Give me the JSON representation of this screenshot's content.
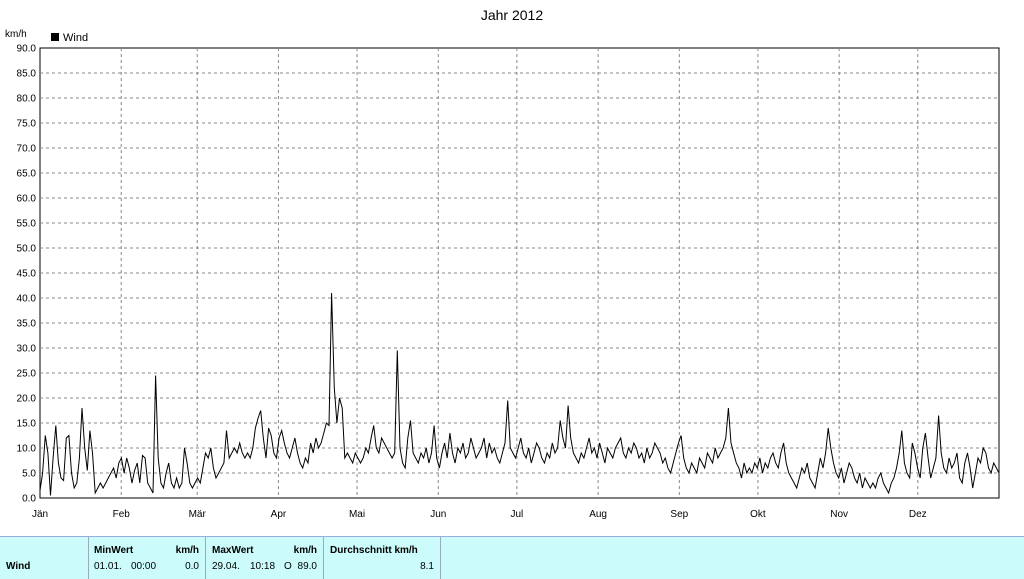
{
  "chart_data": {
    "type": "line",
    "title": "Jahr 2012",
    "ylabel": "km/h",
    "ylim": [
      0,
      90
    ],
    "yticks": [
      "0.0",
      "5.0",
      "10.0",
      "15.0",
      "20.0",
      "25.0",
      "30.0",
      "35.0",
      "40.0",
      "45.0",
      "50.0",
      "55.0",
      "60.0",
      "65.0",
      "70.0",
      "75.0",
      "80.0",
      "85.0",
      "90.0"
    ],
    "x_tick_labels": [
      "Jän",
      "Feb",
      "Mär",
      "Apr",
      "Mai",
      "Jun",
      "Jul",
      "Aug",
      "Sep",
      "Okt",
      "Nov",
      "Dez"
    ],
    "grid": true,
    "legend": "top-left",
    "series": [
      {
        "name": "Wind",
        "color": "#000000",
        "values": [
          1.5,
          5,
          12.5,
          9,
          0.5,
          8,
          14.5,
          7,
          4,
          3.5,
          12,
          12.5,
          5,
          2,
          3,
          8,
          18,
          10,
          5.5,
          13.5,
          9,
          1,
          2,
          3,
          2,
          3,
          4,
          5,
          6,
          4,
          7,
          8,
          5,
          8,
          6,
          3,
          5.5,
          7,
          3,
          8.5,
          8,
          3,
          2,
          1,
          24.5,
          8,
          3,
          2,
          5,
          7,
          3,
          2,
          4,
          2,
          3,
          10,
          7,
          3,
          2,
          3,
          4,
          3,
          6,
          9,
          8,
          10,
          6,
          4,
          5,
          6,
          7,
          13.5,
          8,
          9,
          10,
          9,
          11,
          9,
          8,
          9,
          8,
          10,
          14,
          16,
          17.5,
          12,
          8,
          14,
          12.5,
          9,
          8,
          12,
          13.5,
          11,
          9,
          8,
          10,
          12,
          9,
          7,
          6,
          8,
          7,
          11,
          9,
          12,
          10,
          11,
          13,
          15,
          14.5,
          41,
          22,
          15,
          20,
          18,
          8,
          9,
          8,
          7,
          9,
          8,
          7,
          8,
          10,
          9,
          12,
          14.5,
          10,
          9,
          12,
          11,
          10,
          9,
          8,
          9,
          29.5,
          10,
          7,
          6,
          12,
          15.5,
          9,
          8,
          7,
          9,
          8,
          10,
          7,
          9,
          14.5,
          8,
          6,
          9,
          11,
          8,
          13,
          9,
          7,
          10,
          9,
          11,
          8,
          9,
          12,
          10,
          8,
          9,
          10,
          12,
          8,
          11,
          9,
          10,
          8,
          7,
          9,
          11,
          19.5,
          10,
          9,
          8,
          10,
          12,
          9,
          8,
          10,
          7,
          9,
          11,
          10,
          8,
          7,
          9,
          8,
          11,
          9,
          10,
          15.5,
          12,
          10,
          18.5,
          12,
          9,
          8,
          7,
          9,
          8,
          10,
          12,
          9,
          10,
          8,
          11,
          9,
          7,
          10,
          9,
          8,
          10,
          11,
          12,
          9,
          8,
          10,
          9,
          11,
          10,
          8,
          9,
          7,
          10,
          8,
          9,
          11,
          10,
          9,
          7,
          8,
          6,
          5,
          7,
          9,
          11,
          12.5,
          8,
          6,
          5,
          7,
          6,
          5,
          8,
          7,
          6,
          9,
          8,
          7,
          10,
          8,
          9,
          10,
          12,
          18,
          11,
          9,
          7,
          6,
          4,
          7,
          5,
          6,
          5,
          7,
          6,
          8,
          5,
          7,
          6,
          8,
          9,
          7,
          6,
          9,
          11,
          7,
          5,
          4,
          3,
          2,
          4,
          6,
          5,
          7,
          4,
          3,
          2,
          5,
          8,
          6,
          9,
          14,
          10,
          7,
          5,
          4,
          6,
          3,
          5,
          7,
          6,
          4,
          3,
          5,
          2,
          4,
          3,
          2,
          3,
          2,
          4,
          5,
          3,
          2,
          1,
          3,
          4,
          6,
          9,
          13.5,
          7,
          5,
          4,
          11,
          9,
          6,
          4,
          10,
          13,
          8,
          4,
          6,
          8,
          16.5,
          9,
          6,
          5,
          8,
          6,
          7,
          9,
          4,
          3,
          7,
          9,
          6,
          2,
          5,
          8,
          7,
          10,
          9,
          6,
          5,
          7,
          6,
          5
        ]
      }
    ]
  },
  "stats": {
    "row_label": "Wind",
    "min": {
      "header": "MinWert",
      "unit": "km/h",
      "date": "01.01.",
      "time": "00:00",
      "value": "0.0"
    },
    "max": {
      "header": "MaxWert",
      "unit": "km/h",
      "date": "29.04.",
      "time": "10:18",
      "dir": "O",
      "value": "89.0"
    },
    "avg": {
      "header": "Durchschnitt km/h",
      "value": "8.1"
    }
  }
}
